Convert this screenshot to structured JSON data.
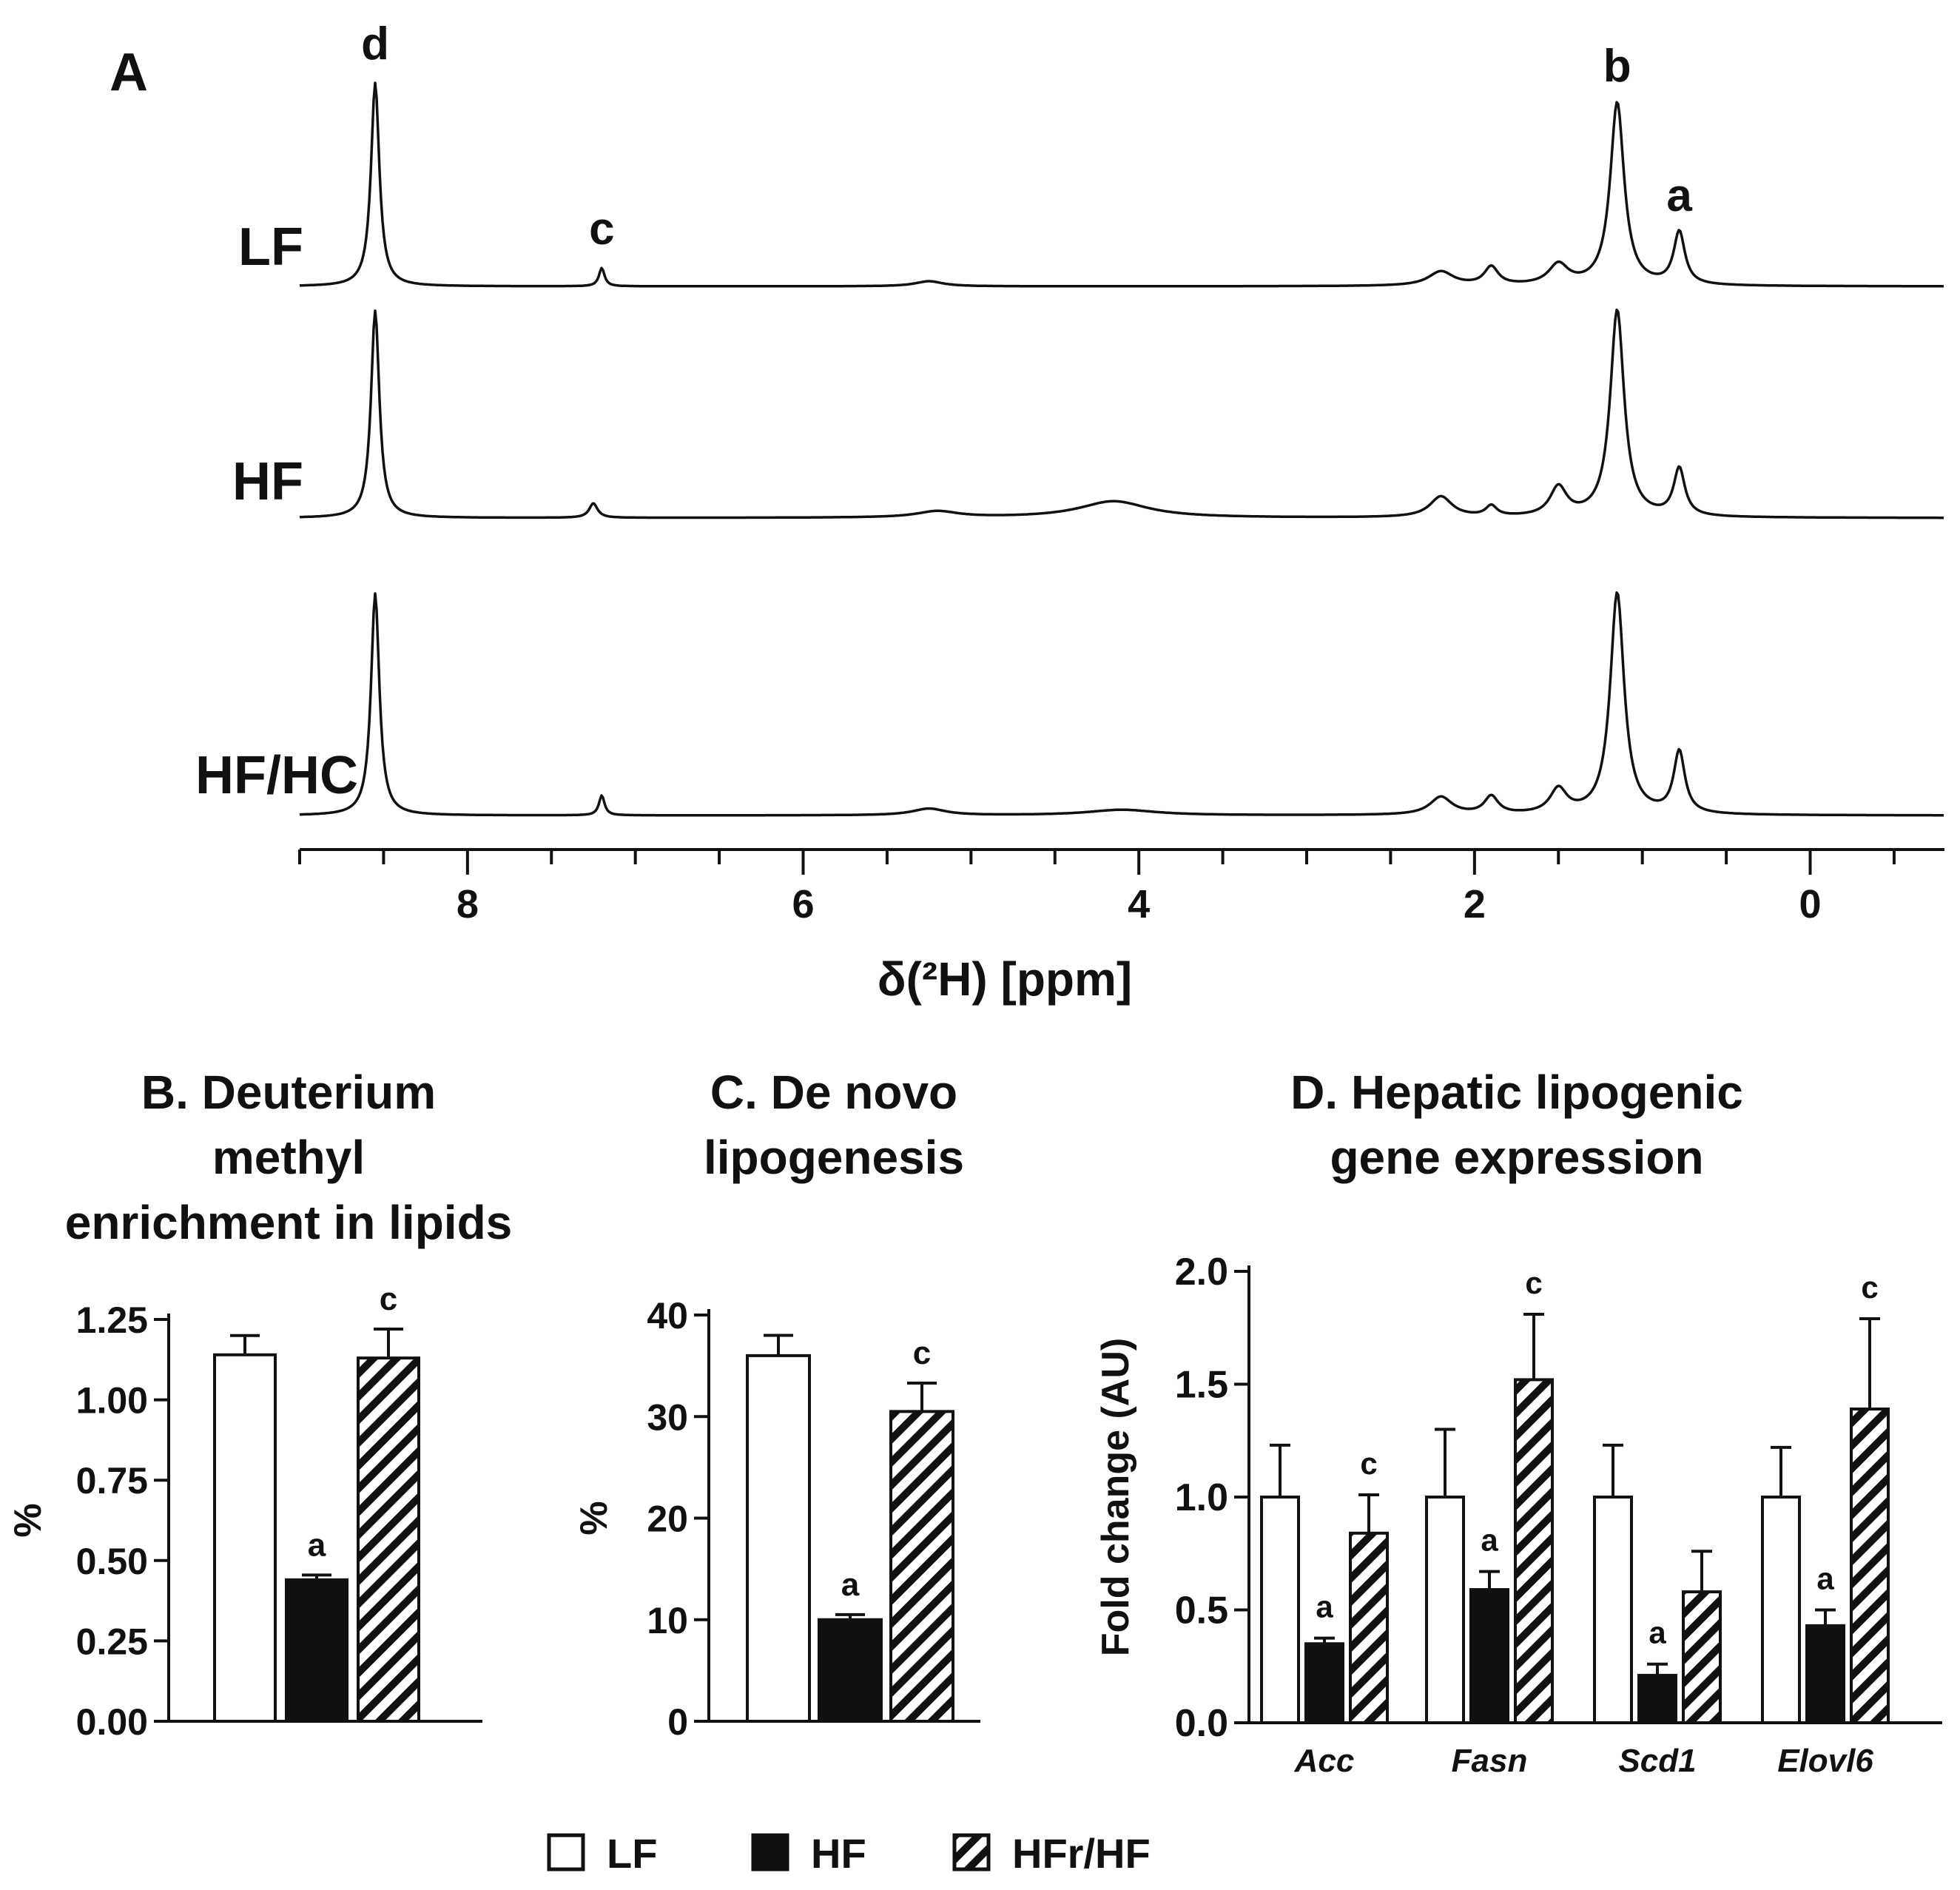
{
  "figure": {
    "panel_a_letter": "A",
    "panel_a_xlabel": "δ(²H) [ppm]",
    "legend": [
      {
        "label": "LF",
        "style": "white"
      },
      {
        "label": "HF",
        "style": "black"
      },
      {
        "label": "HFr/HF",
        "style": "hatched"
      }
    ]
  },
  "chart_data": [
    {
      "id": "A",
      "type": "line",
      "title": "A",
      "xlabel": "δ(²H) [ppm]",
      "ylabel": "",
      "xlim": [
        9.0,
        -0.8
      ],
      "x_ticks": [
        8,
        6,
        4,
        2,
        0
      ],
      "x_tick_labels": [
        "8",
        "6",
        "4",
        "2",
        "0"
      ],
      "peak_labels": [
        {
          "label": "d",
          "ppm": 8.55
        },
        {
          "label": "c",
          "ppm": 7.2
        },
        {
          "label": "b",
          "ppm": 1.15
        },
        {
          "label": "a",
          "ppm": 0.78
        }
      ],
      "series": [
        {
          "name": "LF",
          "peaks": [
            {
              "ppm": 8.55,
              "height": 1.0,
              "width": 0.03
            },
            {
              "ppm": 7.2,
              "height": 0.09,
              "width": 0.02
            },
            {
              "ppm": 5.25,
              "height": 0.025,
              "width": 0.1
            },
            {
              "ppm": 2.2,
              "height": 0.07,
              "width": 0.09
            },
            {
              "ppm": 1.9,
              "height": 0.09,
              "width": 0.05
            },
            {
              "ppm": 1.5,
              "height": 0.1,
              "width": 0.07
            },
            {
              "ppm": 1.15,
              "height": 0.9,
              "width": 0.05
            },
            {
              "ppm": 0.78,
              "height": 0.26,
              "width": 0.04
            }
          ]
        },
        {
          "name": "HF",
          "peaks": [
            {
              "ppm": 8.55,
              "height": 1.0,
              "width": 0.03
            },
            {
              "ppm": 7.25,
              "height": 0.07,
              "width": 0.03
            },
            {
              "ppm": 5.2,
              "height": 0.03,
              "width": 0.15
            },
            {
              "ppm": 4.15,
              "height": 0.08,
              "width": 0.25
            },
            {
              "ppm": 2.2,
              "height": 0.1,
              "width": 0.08
            },
            {
              "ppm": 1.9,
              "height": 0.05,
              "width": 0.04
            },
            {
              "ppm": 1.5,
              "height": 0.14,
              "width": 0.06
            },
            {
              "ppm": 1.15,
              "height": 1.0,
              "width": 0.05
            },
            {
              "ppm": 0.78,
              "height": 0.23,
              "width": 0.04
            }
          ]
        },
        {
          "name": "HF/HC",
          "peaks": [
            {
              "ppm": 8.55,
              "height": 1.0,
              "width": 0.03
            },
            {
              "ppm": 7.2,
              "height": 0.09,
              "width": 0.02
            },
            {
              "ppm": 5.25,
              "height": 0.03,
              "width": 0.12
            },
            {
              "ppm": 4.1,
              "height": 0.025,
              "width": 0.25
            },
            {
              "ppm": 2.2,
              "height": 0.08,
              "width": 0.08
            },
            {
              "ppm": 1.9,
              "height": 0.08,
              "width": 0.05
            },
            {
              "ppm": 1.5,
              "height": 0.11,
              "width": 0.06
            },
            {
              "ppm": 1.15,
              "height": 1.0,
              "width": 0.05
            },
            {
              "ppm": 0.78,
              "height": 0.28,
              "width": 0.04
            }
          ]
        }
      ]
    },
    {
      "id": "B",
      "type": "bar",
      "title": [
        "B. Deuterium",
        "methyl",
        "enrichment in lipids"
      ],
      "xlabel": "",
      "ylabel": "%",
      "ylim": [
        0,
        1.25
      ],
      "y_ticks": [
        0.0,
        0.25,
        0.5,
        0.75,
        1.0,
        1.25
      ],
      "y_tick_labels": [
        "0.00",
        "0.25",
        "0.50",
        "0.75",
        "1.00",
        "1.25"
      ],
      "groups": [
        "LF",
        "HF",
        "HFr/HF"
      ],
      "values": [
        1.14,
        0.44,
        1.13
      ],
      "errors": [
        0.06,
        0.015,
        0.09
      ],
      "annotations": [
        "",
        "a",
        "c"
      ]
    },
    {
      "id": "C",
      "type": "bar",
      "title": [
        "C. De novo",
        "lipogenesis"
      ],
      "xlabel": "",
      "ylabel": "%",
      "ylim": [
        0,
        40
      ],
      "y_ticks": [
        0,
        10,
        20,
        30,
        40
      ],
      "y_tick_labels": [
        "0",
        "10",
        "20",
        "30",
        "40"
      ],
      "groups": [
        "LF",
        "HF",
        "HFr/HF"
      ],
      "values": [
        36,
        10,
        30.5
      ],
      "errors": [
        2.0,
        0.5,
        2.8
      ],
      "annotations": [
        "",
        "a",
        "c"
      ]
    },
    {
      "id": "D",
      "type": "bar",
      "title": [
        "D. Hepatic lipogenic",
        "gene expression"
      ],
      "xlabel": "",
      "ylabel": "Fold change (AU)",
      "ylim": [
        0,
        2.0
      ],
      "y_ticks": [
        0.0,
        0.5,
        1.0,
        1.5,
        2.0
      ],
      "y_tick_labels": [
        "0.0",
        "0.5",
        "1.0",
        "1.5",
        "2.0"
      ],
      "categories": [
        "Acc",
        "Fasn",
        "Scd1",
        "Elovl6"
      ],
      "series": [
        {
          "name": "LF",
          "values": [
            1.0,
            1.0,
            1.0,
            1.0
          ],
          "errors": [
            0.23,
            0.3,
            0.23,
            0.22
          ],
          "annotations": [
            "",
            "",
            "",
            ""
          ]
        },
        {
          "name": "HF",
          "values": [
            0.35,
            0.59,
            0.21,
            0.43
          ],
          "errors": [
            0.025,
            0.08,
            0.05,
            0.07
          ],
          "annotations": [
            "a",
            "a",
            "a",
            "a"
          ]
        },
        {
          "name": "HFr/HF",
          "values": [
            0.84,
            1.52,
            0.58,
            1.39
          ],
          "errors": [
            0.17,
            0.29,
            0.18,
            0.4
          ],
          "annotations": [
            "c",
            "c",
            "",
            "c"
          ]
        }
      ]
    }
  ]
}
